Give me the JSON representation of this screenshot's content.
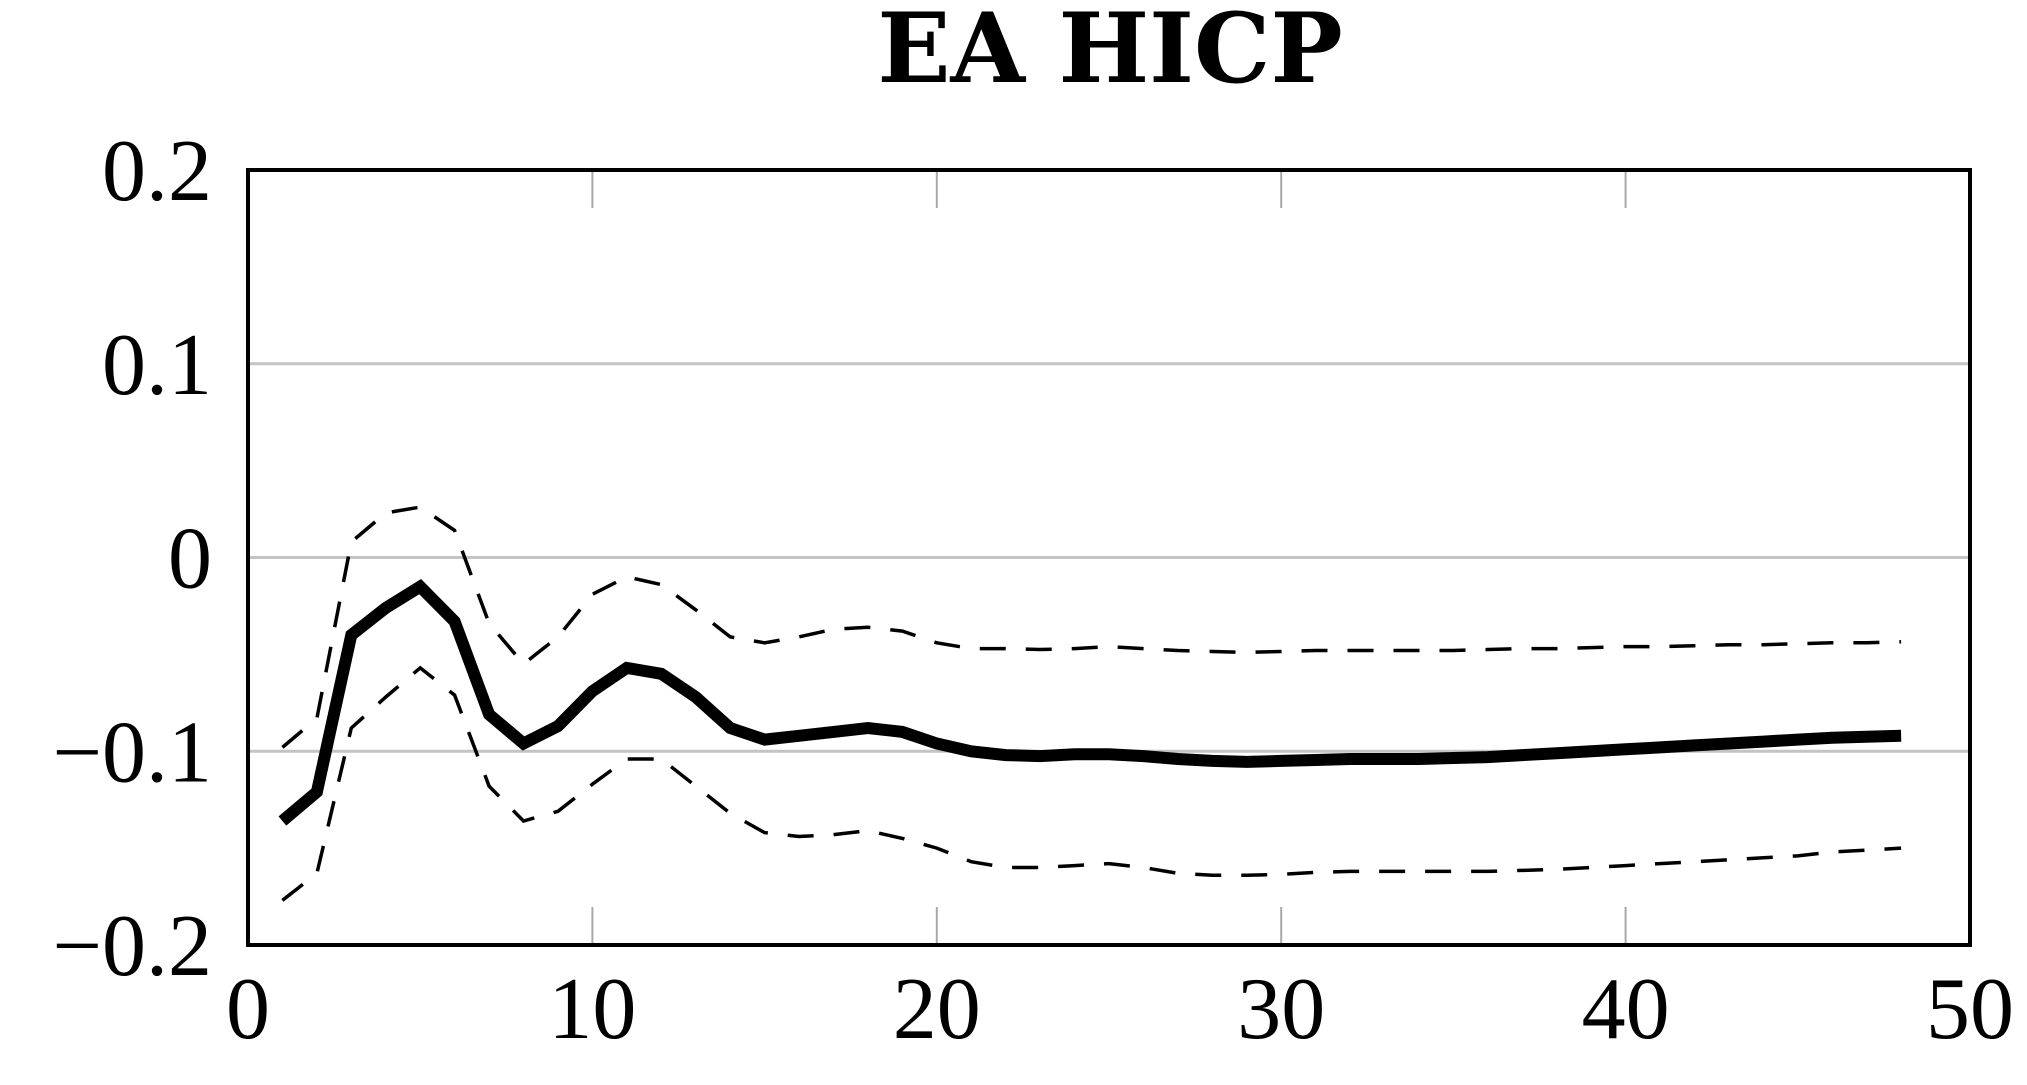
{
  "chart_data": {
    "type": "line",
    "title": "EA HICP",
    "xlabel": "",
    "ylabel": "",
    "xlim": [
      0,
      50
    ],
    "ylim": [
      -0.2,
      0.2
    ],
    "x_ticks": [
      0,
      10,
      20,
      30,
      40,
      50
    ],
    "x_tick_labels": [
      "0",
      "10",
      "20",
      "30",
      "40",
      "50"
    ],
    "y_ticks": [
      -0.2,
      -0.1,
      0,
      0.1,
      0.2
    ],
    "y_tick_labels": [
      "−0.2",
      "−0.1",
      "0",
      "0.1",
      "0.2"
    ],
    "grid": "horizontal",
    "legend": "none",
    "x": [
      1,
      2,
      3,
      4,
      5,
      6,
      7,
      8,
      9,
      10,
      11,
      12,
      13,
      14,
      15,
      16,
      17,
      18,
      19,
      20,
      21,
      22,
      23,
      24,
      25,
      26,
      27,
      28,
      29,
      30,
      31,
      32,
      33,
      34,
      35,
      36,
      37,
      38,
      39,
      40,
      41,
      42,
      43,
      44,
      45,
      46,
      47,
      48
    ],
    "series": [
      {
        "style": "solid",
        "color": "#000000",
        "values": [
          -0.136,
          -0.121,
          -0.04,
          -0.026,
          -0.015,
          -0.033,
          -0.081,
          -0.096,
          -0.087,
          -0.069,
          -0.057,
          -0.06,
          -0.072,
          -0.088,
          -0.094,
          -0.092,
          -0.09,
          -0.088,
          -0.09,
          -0.096,
          -0.1,
          -0.102,
          -0.1025,
          -0.1015,
          -0.1015,
          -0.1025,
          -0.104,
          -0.105,
          -0.1055,
          -0.105,
          -0.1045,
          -0.104,
          -0.104,
          -0.104,
          -0.1035,
          -0.103,
          -0.102,
          -0.101,
          -0.1,
          -0.099,
          -0.098,
          -0.097,
          -0.096,
          -0.095,
          -0.094,
          -0.093,
          -0.0925,
          -0.092
        ]
      },
      {
        "style": "dashed",
        "color": "#000000",
        "values": [
          -0.098,
          -0.083,
          0.008,
          0.023,
          0.026,
          0.014,
          -0.034,
          -0.055,
          -0.041,
          -0.019,
          -0.01,
          -0.014,
          -0.027,
          -0.041,
          -0.044,
          -0.041,
          -0.037,
          -0.036,
          -0.038,
          -0.044,
          -0.047,
          -0.047,
          -0.0475,
          -0.047,
          -0.046,
          -0.047,
          -0.048,
          -0.0485,
          -0.049,
          -0.0485,
          -0.048,
          -0.048,
          -0.048,
          -0.048,
          -0.048,
          -0.0475,
          -0.047,
          -0.047,
          -0.0465,
          -0.046,
          -0.046,
          -0.0455,
          -0.045,
          -0.045,
          -0.0445,
          -0.044,
          -0.044,
          -0.0435
        ]
      },
      {
        "style": "dashed",
        "color": "#000000",
        "values": [
          -0.177,
          -0.163,
          -0.088,
          -0.072,
          -0.057,
          -0.071,
          -0.118,
          -0.136,
          -0.131,
          -0.117,
          -0.104,
          -0.104,
          -0.118,
          -0.132,
          -0.142,
          -0.144,
          -0.143,
          -0.141,
          -0.145,
          -0.15,
          -0.157,
          -0.16,
          -0.16,
          -0.159,
          -0.158,
          -0.16,
          -0.163,
          -0.164,
          -0.164,
          -0.1635,
          -0.1625,
          -0.162,
          -0.162,
          -0.162,
          -0.162,
          -0.162,
          -0.1615,
          -0.161,
          -0.16,
          -0.159,
          -0.158,
          -0.157,
          -0.156,
          -0.155,
          -0.154,
          -0.152,
          -0.151,
          -0.15
        ]
      }
    ]
  }
}
